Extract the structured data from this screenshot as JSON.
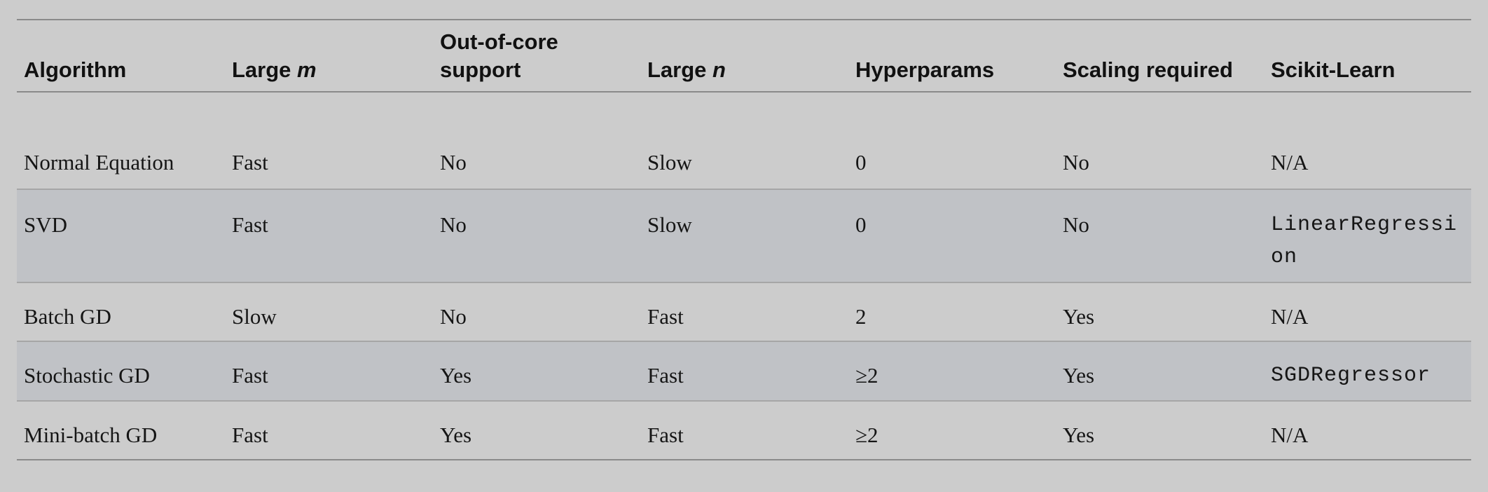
{
  "header": {
    "algorithm": "Algorithm",
    "large_m_prefix": "Large ",
    "large_m_var": "m",
    "out_of_core_line1": "Out-of-core",
    "out_of_core_line2": "support",
    "large_n_prefix": "Large ",
    "large_n_var": "n",
    "hyperparams": "Hyperparams",
    "scaling_required": "Scaling required",
    "scikit_learn": "Scikit-Learn"
  },
  "rows": [
    {
      "algorithm": "Normal Equation",
      "large_m": "Fast",
      "out_of_core": "No",
      "large_n": "Slow",
      "hyperparams": "0",
      "scaling": "No",
      "sklearn": "N/A"
    },
    {
      "algorithm": "SVD",
      "large_m": "Fast",
      "out_of_core": "No",
      "large_n": "Slow",
      "hyperparams": "0",
      "scaling": "No",
      "sklearn": "LinearRegression"
    },
    {
      "algorithm": "Batch GD",
      "large_m": "Slow",
      "out_of_core": "No",
      "large_n": "Fast",
      "hyperparams": "2",
      "scaling": "Yes",
      "sklearn": "N/A"
    },
    {
      "algorithm": "Stochastic GD",
      "large_m": "Fast",
      "out_of_core": "Yes",
      "large_n": "Fast",
      "hyperparams": "≥2",
      "scaling": "Yes",
      "sklearn": "SGDRegressor"
    },
    {
      "algorithm": "Mini-batch GD",
      "large_m": "Fast",
      "out_of_core": "Yes",
      "large_n": "Fast",
      "hyperparams": "≥2",
      "scaling": "Yes",
      "sklearn": "N/A"
    }
  ]
}
